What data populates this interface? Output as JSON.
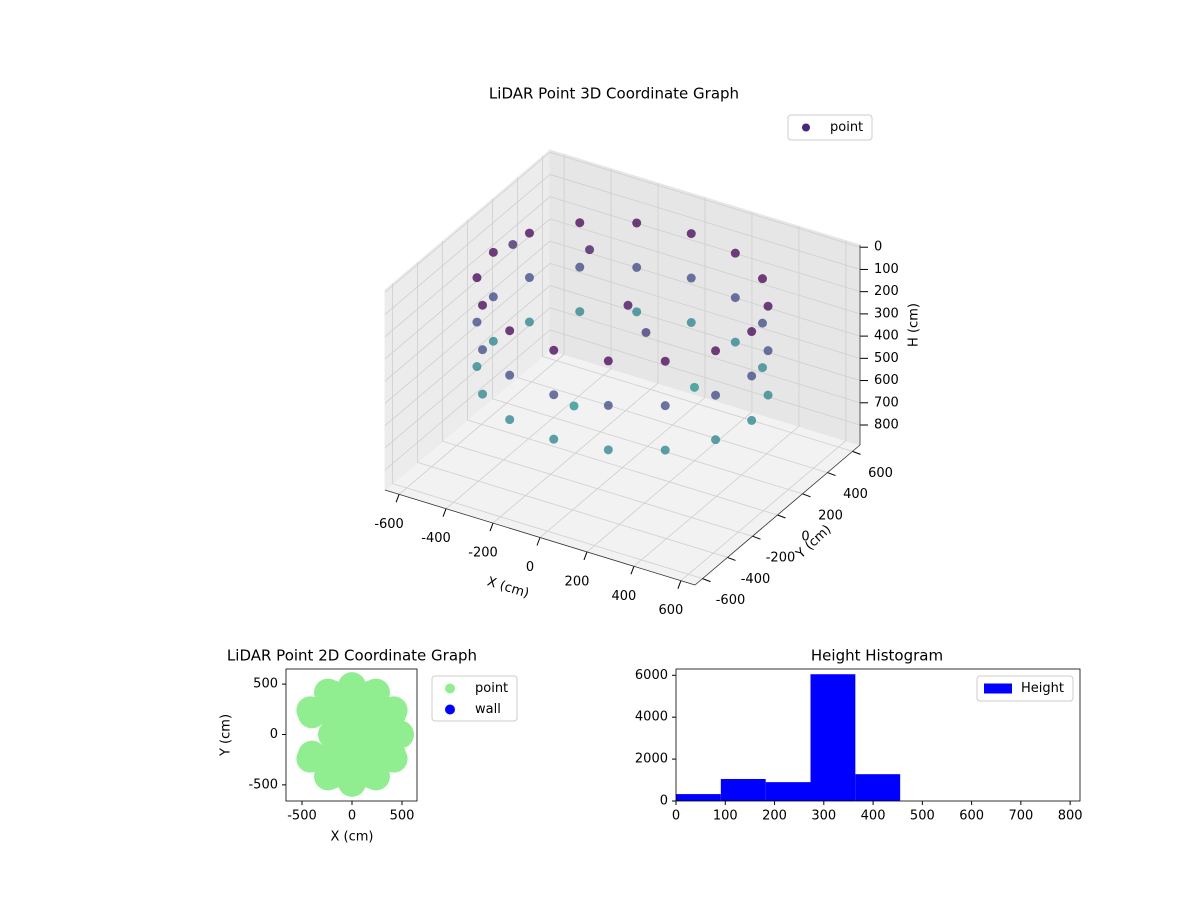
{
  "chart_data": [
    {
      "type": "scatter3d",
      "title": "LiDAR Point 3D Coordinate Graph",
      "xlabel": "X (cm)",
      "ylabel": "Y (cm)",
      "zlabel": "H (cm)",
      "xlim": [
        -660,
        660
      ],
      "ylim": [
        -660,
        660
      ],
      "zlim": [
        890,
        -10
      ],
      "xticks": [
        -600,
        -400,
        -200,
        0,
        200,
        400,
        600
      ],
      "yticks": [
        -600,
        -400,
        -200,
        0,
        200,
        400,
        600
      ],
      "zticks": [
        0,
        100,
        200,
        300,
        400,
        500,
        600,
        700,
        800
      ],
      "colormap": "viridis",
      "legend": "upper right",
      "series": [
        {
          "name": "point",
          "color": "#482878",
          "x": [
            550,
            508,
            389,
            210,
            0,
            -210,
            -389,
            -508,
            -550,
            -508,
            -389,
            -210,
            0,
            210,
            389,
            508,
            550,
            508,
            389,
            210,
            0,
            -210,
            -389,
            -508,
            -550,
            -508,
            -389,
            -210,
            0,
            210,
            389,
            508,
            550,
            508,
            389,
            210,
            0,
            -210,
            -389,
            -508,
            -550,
            -508,
            -389,
            -210,
            0,
            210,
            389,
            508,
            50,
            100,
            -100,
            200,
            -300,
            -600
          ],
          "y": [
            0,
            210,
            389,
            508,
            550,
            508,
            389,
            210,
            0,
            -210,
            -389,
            -508,
            -550,
            -508,
            -389,
            -210,
            0,
            210,
            389,
            508,
            550,
            508,
            389,
            210,
            0,
            -210,
            -389,
            -508,
            -550,
            -508,
            -389,
            -210,
            0,
            210,
            389,
            508,
            550,
            508,
            389,
            210,
            0,
            -210,
            -389,
            -508,
            -550,
            -508,
            -389,
            -210,
            -50,
            0,
            -200,
            200,
            300,
            250
          ],
          "z": [
            100,
            100,
            100,
            100,
            100,
            100,
            100,
            100,
            100,
            100,
            100,
            100,
            100,
            100,
            100,
            100,
            300,
            300,
            300,
            300,
            300,
            300,
            300,
            300,
            300,
            300,
            300,
            300,
            300,
            300,
            300,
            300,
            500,
            500,
            500,
            500,
            500,
            500,
            500,
            500,
            500,
            500,
            500,
            500,
            500,
            500,
            500,
            500,
            120,
            250,
            550,
            560,
            150,
            200
          ]
        }
      ]
    },
    {
      "type": "scatter",
      "title": "LiDAR Point 2D Coordinate Graph",
      "xlabel": "X (cm)",
      "ylabel": "Y (cm)",
      "xlim": [
        -660,
        650
      ],
      "ylim": [
        -660,
        650
      ],
      "xticks": [
        -500,
        0,
        500
      ],
      "yticks": [
        -500,
        0,
        500
      ],
      "legend": "outside right",
      "series": [
        {
          "name": "point",
          "color": "#90ee90",
          "x": [
            -200,
            0,
            200,
            -400,
            -200,
            0,
            200,
            400,
            -200,
            0,
            200,
            400,
            -400,
            -200,
            0,
            200,
            400,
            -200,
            0,
            200,
            480,
            416,
            240,
            0,
            -240,
            -416,
            -416,
            -240,
            0,
            240,
            416
          ],
          "y": [
            -400,
            -400,
            -400,
            -200,
            -200,
            -200,
            -200,
            -200,
            0,
            0,
            0,
            0,
            200,
            200,
            200,
            200,
            200,
            400,
            400,
            400,
            0,
            240,
            416,
            480,
            416,
            240,
            -240,
            -416,
            -480,
            -416,
            -240
          ]
        },
        {
          "name": "wall",
          "color": "#0000ff",
          "x": [],
          "y": []
        }
      ]
    },
    {
      "type": "histogram",
      "title": "Height Histogram",
      "xlim": [
        0,
        820
      ],
      "ylim": [
        0,
        6300
      ],
      "xticks": [
        0,
        100,
        200,
        300,
        400,
        500,
        600,
        700,
        800
      ],
      "yticks": [
        0,
        2000,
        4000,
        6000
      ],
      "legend": "upper right",
      "bins": [
        0,
        91,
        182,
        273,
        364,
        455,
        546,
        637,
        728,
        819
      ],
      "series": [
        {
          "name": "Height",
          "color": "#0000ff",
          "values": [
            330,
            1050,
            900,
            6050,
            1280,
            0,
            0,
            0,
            0
          ]
        }
      ]
    }
  ]
}
